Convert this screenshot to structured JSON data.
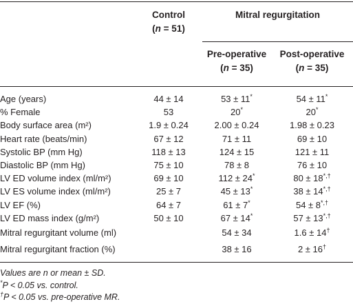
{
  "table": {
    "header": {
      "control": "Control",
      "control_n": "(n = 51)",
      "group": "Mitral regurgitation",
      "pre": "Pre-operative",
      "pre_n": "(n = 35)",
      "post": "Post-operative",
      "post_n": "(n = 35)"
    },
    "rows": [
      [
        "Age (years)",
        "44 ± 14",
        "53 ± 11*",
        "54 ± 11*"
      ],
      [
        "% Female",
        "53",
        "20*",
        "20*"
      ],
      [
        "Body surface area (m²)",
        "1.9 ± 0.24",
        "2.00 ± 0.24",
        "1.98 ± 0.23"
      ],
      [
        "Heart rate (beats/min)",
        "67 ± 12",
        "71 ± 11",
        "69 ± 10"
      ],
      [
        "Systolic BP (mm Hg)",
        "118 ± 13",
        "124 ± 15",
        "121 ± 11"
      ],
      [
        "Diastolic BP (mm Hg)",
        "75 ± 10",
        "78 ± 8",
        "76 ± 10"
      ],
      [
        "LV ED volume index (ml/m²)",
        "69 ± 10",
        "112 ± 24*",
        "80 ± 18*,†"
      ],
      [
        "LV ES volume index (ml/m²)",
        "25 ± 7",
        "45 ± 13*",
        "38 ± 14*,†"
      ],
      [
        "LV EF (%)",
        "64 ± 7",
        "61 ± 7*",
        "54 ± 8*,†"
      ],
      [
        "LV ED mass index (g/m²)",
        "50 ± 10",
        "67 ± 14*",
        "57 ± 13*,†"
      ],
      [
        "Mitral regurgitant volume (ml)",
        null,
        "54 ± 34",
        "1.6 ± 14†"
      ],
      [
        "Mitral regurgitant fraction (%)",
        null,
        "38 ± 16",
        "2 ± 16†"
      ]
    ],
    "footnotes": [
      "Values are n or mean ± SD.",
      "*P < 0.05 vs. control.",
      "†P < 0.05 vs. pre-operative MR."
    ]
  }
}
